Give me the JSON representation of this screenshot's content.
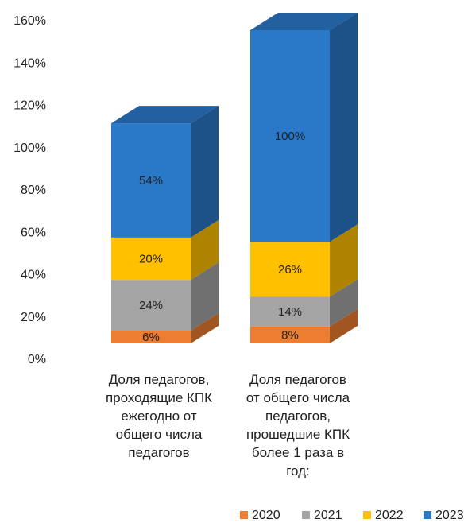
{
  "chart_data": {
    "type": "bar3d_stacked",
    "categories": [
      "Доля педагогов,\nпроходящие КПК\nежегодно от\nобщего числа\nпедагогов",
      "Доля педагогов\nот общего числа\nпедагогов,\nпрошедшие КПК\nболее 1 раза в\nгод:"
    ],
    "series": [
      {
        "name": "2020",
        "color": "#ed7d31",
        "values": [
          6,
          8
        ],
        "value_labels": [
          "6%",
          "8%"
        ]
      },
      {
        "name": "2021",
        "color": "#a5a5a5",
        "values": [
          24,
          14
        ],
        "value_labels": [
          "24%",
          "14%"
        ]
      },
      {
        "name": "2022",
        "color": "#ffc000",
        "values": [
          20,
          26
        ],
        "value_labels": [
          "20%",
          "26%"
        ]
      },
      {
        "name": "2023",
        "color": "#2a78c8",
        "values": [
          54,
          100
        ],
        "value_labels": [
          "54%",
          "100%"
        ]
      }
    ],
    "ylim": [
      0,
      160
    ],
    "yticks": [
      {
        "value": 0,
        "label": "0%"
      },
      {
        "value": 20,
        "label": "20%"
      },
      {
        "value": 40,
        "label": "40%"
      },
      {
        "value": 60,
        "label": "60%"
      },
      {
        "value": 80,
        "label": "80%"
      },
      {
        "value": 100,
        "label": "100%"
      },
      {
        "value": 120,
        "label": "120%"
      },
      {
        "value": 140,
        "label": "140%"
      },
      {
        "value": 160,
        "label": "160%"
      }
    ],
    "legend": "bottom-right"
  }
}
